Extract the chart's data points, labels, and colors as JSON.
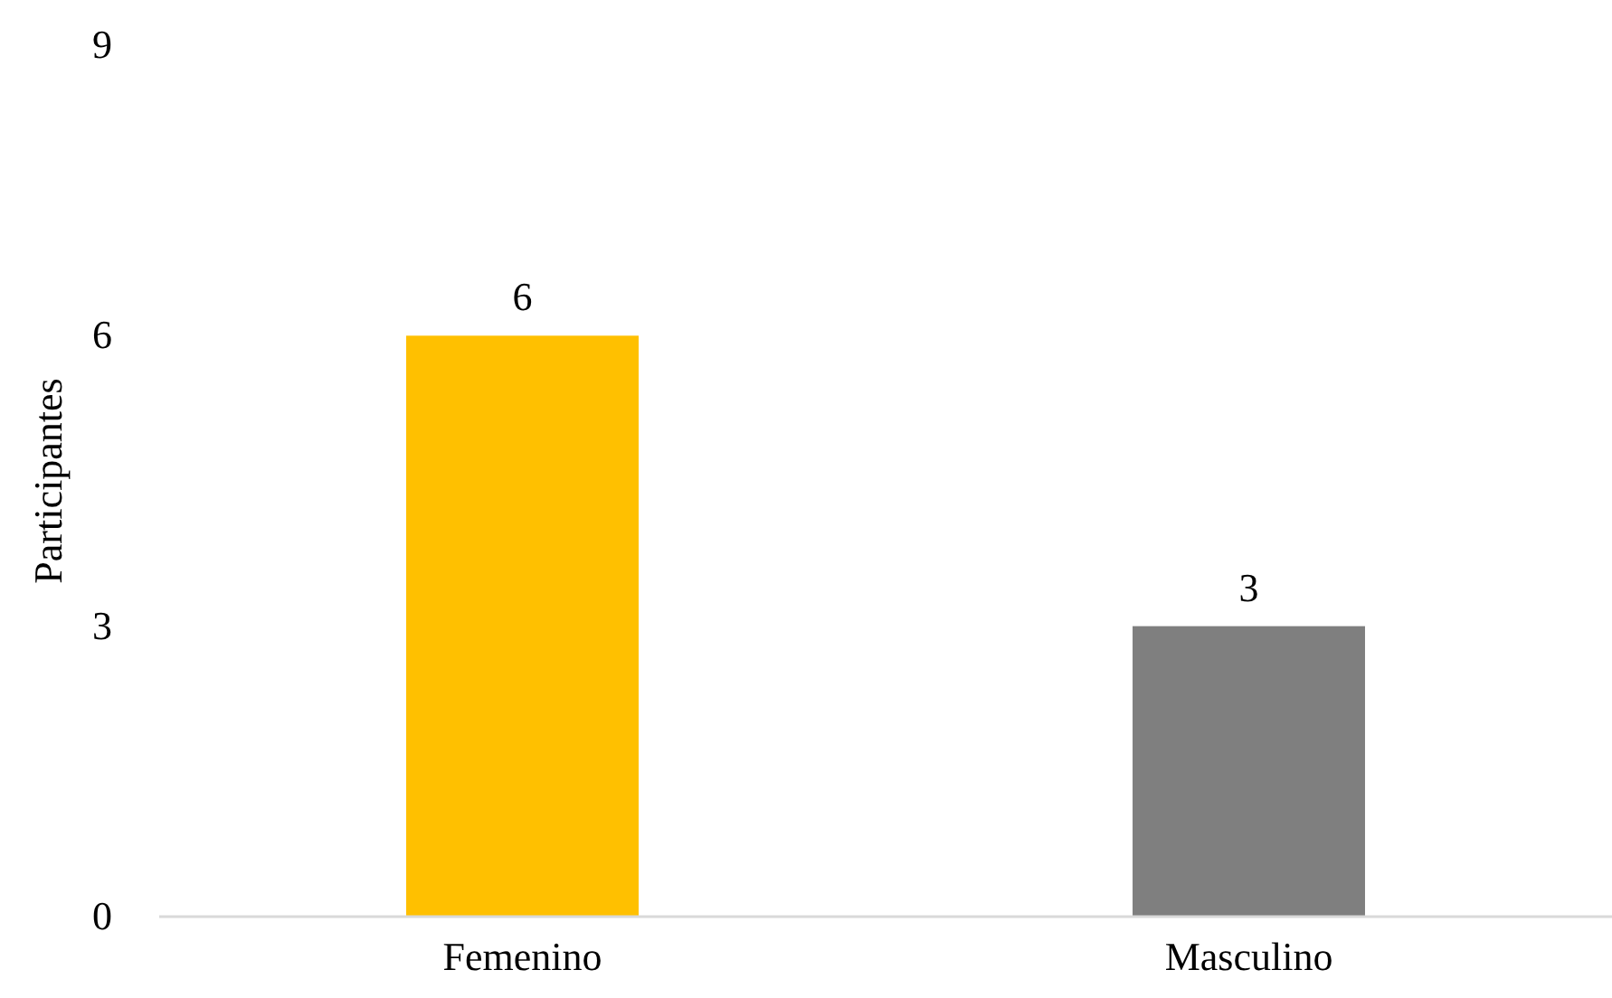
{
  "chart_data": {
    "type": "bar",
    "ylabel": "Participantes",
    "categories": [
      "Femenino",
      "Masculino"
    ],
    "values": [
      6,
      3
    ],
    "colors": [
      "#ffc000",
      "#7f7f7f"
    ],
    "ylim": [
      0,
      9
    ],
    "yticks": [
      0,
      3,
      6,
      9
    ],
    "grid": false,
    "data_labels": true
  }
}
